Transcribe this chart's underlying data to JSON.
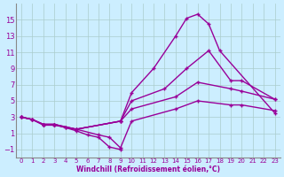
{
  "xlabel": "Windchill (Refroidissement éolien,°C)",
  "background_color": "#cceeff",
  "line_color": "#990099",
  "grid_color": "#aacccc",
  "xlim": [
    -0.5,
    23.5
  ],
  "ylim": [
    -2,
    17
  ],
  "xticks": [
    0,
    1,
    2,
    3,
    4,
    5,
    6,
    7,
    8,
    9,
    10,
    11,
    12,
    13,
    14,
    15,
    16,
    17,
    18,
    19,
    20,
    21,
    22,
    23
  ],
  "yticks": [
    -1,
    1,
    3,
    5,
    7,
    9,
    11,
    13,
    15
  ],
  "curve1_x": [
    0,
    1,
    2,
    3,
    4,
    5,
    9,
    10,
    12,
    14,
    15,
    16,
    17,
    18,
    23
  ],
  "curve1_y": [
    3.0,
    2.7,
    2.1,
    2.1,
    1.7,
    1.5,
    2.5,
    6.0,
    9.0,
    13.0,
    15.2,
    15.7,
    14.5,
    11.2,
    3.5
  ],
  "curve2_x": [
    0,
    1,
    2,
    3,
    5,
    9,
    10,
    13,
    15,
    17,
    19,
    20,
    23
  ],
  "curve2_y": [
    3.0,
    2.7,
    2.1,
    2.1,
    1.5,
    2.5,
    5.0,
    6.5,
    9.0,
    11.2,
    7.5,
    7.5,
    5.2
  ],
  "curve3_x": [
    0,
    1,
    2,
    3,
    5,
    9,
    10,
    14,
    16,
    19,
    20,
    23
  ],
  "curve3_y": [
    3.0,
    2.7,
    2.1,
    2.1,
    1.5,
    2.5,
    4.0,
    5.5,
    7.3,
    6.5,
    6.2,
    5.2
  ],
  "curve4_x": [
    0,
    1,
    2,
    3,
    5,
    7,
    8,
    9,
    10,
    14,
    16,
    19,
    20,
    23
  ],
  "curve4_y": [
    3.0,
    2.7,
    2.0,
    2.0,
    1.5,
    0.8,
    0.5,
    -0.8,
    2.5,
    4.0,
    5.0,
    4.5,
    4.5,
    3.8
  ],
  "curve5_x": [
    2,
    3,
    4,
    5,
    6,
    7,
    8,
    9
  ],
  "curve5_y": [
    2.1,
    2.1,
    1.7,
    1.3,
    0.8,
    0.5,
    -0.7,
    -1.0
  ],
  "markersize": 3.5,
  "linewidth": 1.0,
  "tick_fontsize_x": 5.0,
  "tick_fontsize_y": 6.0,
  "xlabel_fontsize": 5.5
}
